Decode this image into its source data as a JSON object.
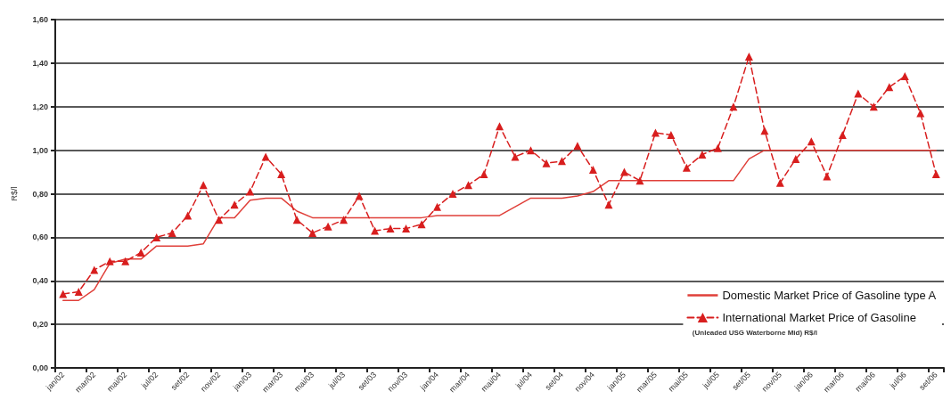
{
  "chart_data": {
    "type": "line",
    "ylabel": "R$/l",
    "categories": [
      "jan/02",
      null,
      "mar/02",
      null,
      "mai/02",
      null,
      "jul/02",
      null,
      "set/02",
      null,
      "nov/02",
      null,
      "jan/03",
      null,
      "mar/03",
      null,
      "mai/03",
      null,
      "jul/03",
      null,
      "set/03",
      null,
      "nov/03",
      null,
      "jan/04",
      null,
      "mar/04",
      null,
      "mai/04",
      null,
      "jul/04",
      null,
      "set/04",
      null,
      "nov/04",
      null,
      "jan/05",
      null,
      "mar/05",
      null,
      "mai/05",
      null,
      "jul/05",
      null,
      "set/05",
      null,
      "nov/05",
      null,
      "jan/06",
      null,
      "mar/06",
      null,
      "mai/06",
      null,
      "jul/06",
      null,
      "set/06"
    ],
    "series": [
      {
        "name": "Domestic Market Price of Gasoline type A",
        "color": "#e0403a",
        "marker": "none",
        "line_style": "solid",
        "values": [
          0.31,
          0.31,
          0.36,
          0.48,
          0.5,
          0.5,
          0.56,
          0.56,
          0.56,
          0.57,
          0.69,
          0.69,
          0.77,
          0.78,
          0.78,
          0.72,
          0.69,
          0.69,
          0.69,
          0.69,
          0.69,
          0.69,
          0.69,
          0.69,
          0.7,
          0.7,
          0.7,
          0.7,
          0.7,
          0.74,
          0.78,
          0.78,
          0.78,
          0.79,
          0.81,
          0.86,
          0.86,
          0.86,
          0.86,
          0.86,
          0.86,
          0.86,
          0.86,
          0.86,
          0.96,
          1.0,
          1.0,
          1.0,
          1.0,
          1.0,
          1.0,
          1.0,
          1.0,
          1.0,
          1.0,
          1.0,
          1.0
        ]
      },
      {
        "name": "International Market Price of Gasoline",
        "color": "#d81e1e",
        "marker": "triangle",
        "line_style": "dashed",
        "values": [
          0.34,
          0.35,
          0.45,
          0.49,
          0.49,
          0.53,
          0.6,
          0.62,
          0.7,
          0.84,
          0.68,
          0.75,
          0.81,
          0.97,
          0.89,
          0.68,
          0.62,
          0.65,
          0.68,
          0.79,
          0.63,
          0.64,
          0.64,
          0.66,
          0.74,
          0.8,
          0.84,
          0.89,
          1.11,
          0.97,
          1.0,
          0.94,
          0.95,
          1.02,
          0.91,
          0.75,
          0.9,
          0.86,
          1.08,
          1.07,
          0.92,
          0.98,
          1.01,
          1.2,
          1.43,
          1.09,
          0.85,
          0.96,
          1.04,
          0.88,
          1.07,
          1.26,
          1.2,
          1.29,
          1.34,
          1.17,
          0.89
        ]
      }
    ],
    "ylim": [
      0,
      1.6
    ],
    "yticks": [
      {
        "value": 0,
        "label": "0,00"
      },
      {
        "value": 0.2,
        "label": "0,20"
      },
      {
        "value": 0.4,
        "label": "0,40"
      },
      {
        "value": 0.6,
        "label": "0,60"
      },
      {
        "value": 0.8,
        "label": "0,80"
      },
      {
        "value": 1.0,
        "label": "1,00"
      },
      {
        "value": 1.2,
        "label": "1,20"
      },
      {
        "value": 1.4,
        "label": "1,40"
      },
      {
        "value": 1.6,
        "label": "1,60"
      }
    ],
    "grid": "y",
    "legend": "bottom right",
    "annotations": [
      "(Unleaded USG Waterborne Mid) R$/l"
    ]
  }
}
